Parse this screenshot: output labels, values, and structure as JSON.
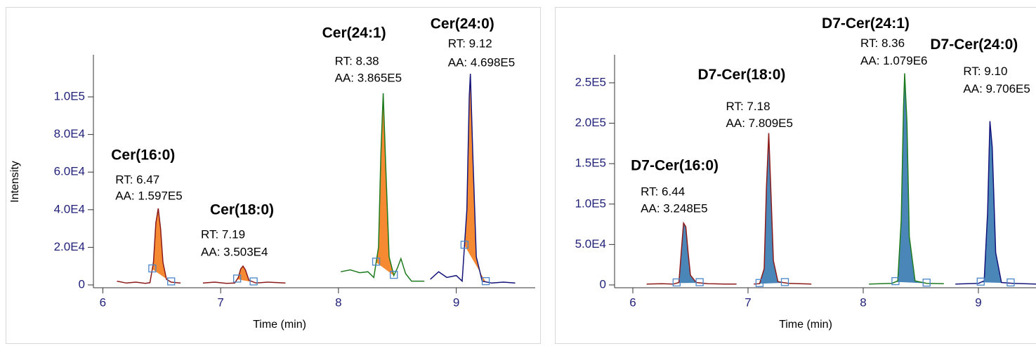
{
  "chart_data": [
    {
      "type": "line",
      "x_label": "Time (min)",
      "y_label": "Intensity",
      "peak_fill": "#f58a33",
      "xlim": [
        5.92,
        9.67
      ],
      "ylim": [
        -1500,
        122400
      ],
      "xticks": [
        6,
        7,
        8,
        9
      ],
      "yticks": [
        0,
        {
          "value": 20000,
          "label": "2.0E4"
        },
        {
          "value": 40000,
          "label": "4.0E4"
        },
        {
          "value": 60000,
          "label": "6.0E4"
        },
        {
          "value": 80000,
          "label": "8.0E4"
        },
        {
          "value": 100000,
          "label": "1.0E5"
        }
      ],
      "series": [
        {
          "name": "Cer(16:0)",
          "rt_label": "RT: 6.47",
          "aa_label": "AA: 1.597E5",
          "color": "#8b1a1a",
          "peak": [
            6.42,
            6.58
          ],
          "x": [
            6.12,
            6.2,
            6.28,
            6.36,
            6.4,
            6.43,
            6.45,
            6.47,
            6.49,
            6.51,
            6.54,
            6.58,
            6.66
          ],
          "values": [
            2000,
            1000,
            1500,
            800,
            1200,
            12000,
            33000,
            40700,
            30000,
            12000,
            3000,
            1500,
            1000
          ]
        },
        {
          "name": "Cer(18:0)",
          "rt_label": "RT: 7.19",
          "aa_label": "AA: 3.503E4",
          "color": "#8b1a1a",
          "peak": [
            7.14,
            7.28
          ],
          "x": [
            6.85,
            6.95,
            7.05,
            7.12,
            7.15,
            7.17,
            7.19,
            7.21,
            7.24,
            7.3,
            7.4,
            7.55
          ],
          "values": [
            1000,
            1500,
            800,
            1000,
            4000,
            8500,
            10000,
            8000,
            2500,
            1000,
            1500,
            1000
          ]
        },
        {
          "name": "Cer(24:1)",
          "rt_label": "RT: 8.38",
          "aa_label": "AA: 3.865E5",
          "color": "#1e7a1e",
          "peak": [
            8.32,
            8.47
          ],
          "x": [
            8.02,
            8.1,
            8.18,
            8.25,
            8.3,
            8.34,
            8.36,
            8.38,
            8.4,
            8.43,
            8.47,
            8.5,
            8.53,
            8.57,
            8.62,
            8.73
          ],
          "values": [
            7000,
            8000,
            6500,
            7000,
            4000,
            20000,
            70000,
            101900,
            65000,
            15000,
            5000,
            9000,
            14000,
            6000,
            2000,
            2000
          ]
        },
        {
          "name": "Cer(24:0)",
          "rt_label": "RT: 9.12",
          "aa_label": "AA: 4.698E5",
          "color": "#14147a",
          "peak": [
            9.07,
            9.25
          ],
          "x": [
            8.78,
            8.85,
            8.92,
            9.0,
            9.05,
            9.09,
            9.11,
            9.12,
            9.14,
            9.17,
            9.22,
            9.3,
            9.4,
            9.5
          ],
          "values": [
            3000,
            7000,
            4000,
            5000,
            2000,
            40000,
            100000,
            112300,
            70000,
            15000,
            2000,
            1000,
            1500,
            1000
          ]
        }
      ]
    },
    {
      "type": "line",
      "x_label": "Time (min)",
      "peak_fill": "#4a86b8",
      "xlim": [
        5.8415,
        9.5
      ],
      "ylim": [
        -3500,
        284700
      ],
      "xticks": [
        6,
        7,
        8,
        9
      ],
      "yticks": [
        0,
        {
          "value": 50000,
          "label": "5.0E4"
        },
        {
          "value": 100000,
          "label": "1.0E5"
        },
        {
          "value": 150000,
          "label": "1.5E5"
        },
        {
          "value": 200000,
          "label": "2.0E5"
        },
        {
          "value": 250000,
          "label": "2.5E5"
        }
      ],
      "series": [
        {
          "name": "D7-Cer(16:0)",
          "rt_label": "RT: 6.44",
          "aa_label": "AA: 3.248E5",
          "color": "#8b1a1a",
          "peak": [
            6.38,
            6.58
          ],
          "x": [
            6.12,
            6.25,
            6.35,
            6.4,
            6.42,
            6.44,
            6.46,
            6.48,
            6.5,
            6.55,
            6.65,
            6.8,
            6.9
          ],
          "values": [
            1000,
            1500,
            1000,
            3000,
            40000,
            76500,
            72000,
            40000,
            12000,
            3000,
            1500,
            1000,
            1000
          ]
        },
        {
          "name": "D7-Cer(18:0)",
          "rt_label": "RT: 7.18",
          "aa_label": "AA: 7.809E5",
          "color": "#8b1a1a",
          "peak": [
            7.1,
            7.32
          ],
          "x": [
            7.05,
            7.1,
            7.14,
            7.16,
            7.18,
            7.2,
            7.22,
            7.26,
            7.35,
            7.45,
            7.55
          ],
          "values": [
            1000,
            1500,
            20000,
            120000,
            187800,
            110000,
            30000,
            4000,
            2000,
            1500,
            1000
          ]
        },
        {
          "name": "D7-Cer(24:1)",
          "rt_label": "RT: 8.36",
          "aa_label": "AA: 1.079E6",
          "color": "#1e7a1e",
          "peak": [
            8.28,
            8.55
          ],
          "x": [
            8.05,
            8.15,
            8.25,
            8.3,
            8.33,
            8.35,
            8.36,
            8.38,
            8.4,
            8.45,
            8.55,
            8.7
          ],
          "values": [
            1000,
            1500,
            2000,
            5000,
            80000,
            220000,
            261700,
            200000,
            60000,
            5000,
            2000,
            1500
          ]
        },
        {
          "name": "D7-Cer(24:0)",
          "rt_label": "RT: 9.10",
          "aa_label": "AA: 9.706E5",
          "color": "#14147a",
          "peak": [
            9.02,
            9.28
          ],
          "x": [
            8.8,
            8.9,
            9.0,
            9.05,
            9.08,
            9.1,
            9.12,
            9.15,
            9.2,
            9.3,
            9.4,
            9.5
          ],
          "values": [
            1000,
            1500,
            2000,
            5000,
            90000,
            202600,
            170000,
            40000,
            3000,
            2000,
            1500,
            1000
          ]
        }
      ]
    }
  ]
}
